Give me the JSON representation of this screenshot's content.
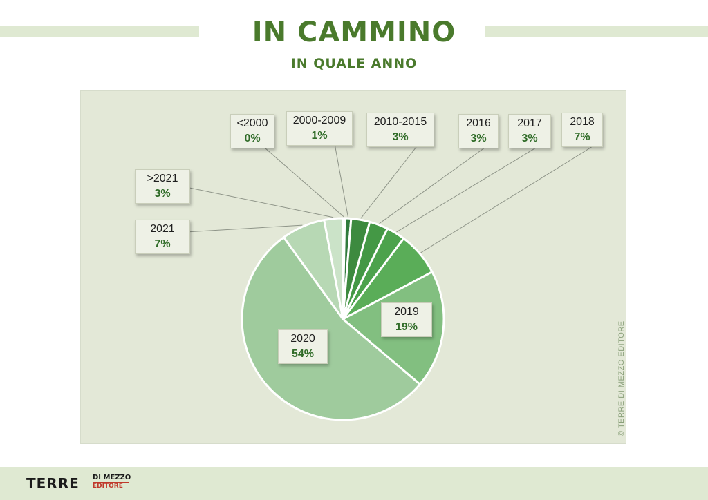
{
  "header": {
    "title": "IN CAMMINO",
    "subtitle": "IN QUALE ANNO"
  },
  "credit": "© TERRE DI MEZZO EDITORE",
  "logo": {
    "main": "TERRE",
    "top": "DI MEZZO",
    "bottom": "EDITORE"
  },
  "chart_data": {
    "type": "pie",
    "title": "IN CAMMINO",
    "subtitle": "IN QUALE ANNO",
    "slices": [
      {
        "label": "<2000",
        "value_label": "0%",
        "value": 0.3,
        "color": "#2f7a3b"
      },
      {
        "label": "2000-2009",
        "value_label": "1%",
        "value": 1,
        "color": "#2f7a3b"
      },
      {
        "label": "2010-2015",
        "value_label": "3%",
        "value": 3,
        "color": "#3d8a3f"
      },
      {
        "label": "2016",
        "value_label": "3%",
        "value": 3,
        "color": "#449845"
      },
      {
        "label": "2017",
        "value_label": "3%",
        "value": 3,
        "color": "#4ca24c"
      },
      {
        "label": "2018",
        "value_label": "7%",
        "value": 7,
        "color": "#5aad58"
      },
      {
        "label": "2019",
        "value_label": "19%",
        "value": 19,
        "color": "#82bf80"
      },
      {
        "label": "2020",
        "value_label": "54%",
        "value": 54,
        "color": "#9fcb9d"
      },
      {
        "label": "2021",
        "value_label": "7%",
        "value": 7,
        "color": "#b7d8b4"
      },
      {
        "label": ">2021",
        "value_label": "3%",
        "value": 3,
        "color": "#cbe3c8"
      }
    ]
  }
}
